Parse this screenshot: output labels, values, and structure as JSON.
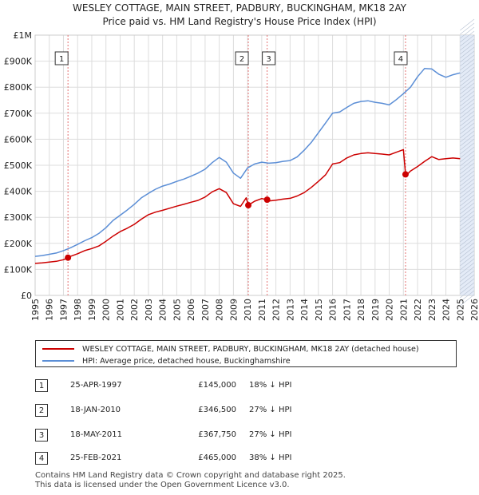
{
  "title_line1": "WESLEY COTTAGE, MAIN STREET, PADBURY, BUCKINGHAM, MK18 2AY",
  "title_line2": "Price paid vs. HM Land Registry's House Price Index (HPI)",
  "colors": {
    "property": "#cc0000",
    "hpi": "#5b8ed6",
    "marker_line": "#e57373",
    "shade": "#dde6f5",
    "grid": "#dddddd"
  },
  "chart_data": {
    "type": "line",
    "xlim": [
      1995,
      2026
    ],
    "ylim": [
      0,
      1000000
    ],
    "x_ticks": [
      "1995",
      "1996",
      "1997",
      "1998",
      "1999",
      "2000",
      "2001",
      "2002",
      "2003",
      "2004",
      "2005",
      "2006",
      "2007",
      "2008",
      "2009",
      "2010",
      "2011",
      "2012",
      "2013",
      "2014",
      "2015",
      "2016",
      "2017",
      "2018",
      "2019",
      "2020",
      "2021",
      "2022",
      "2023",
      "2024",
      "2025",
      "2026"
    ],
    "y_ticks": [
      {
        "value": 0,
        "label": "£0"
      },
      {
        "value": 100000,
        "label": "£100K"
      },
      {
        "value": 200000,
        "label": "£200K"
      },
      {
        "value": 300000,
        "label": "£300K"
      },
      {
        "value": 400000,
        "label": "£400K"
      },
      {
        "value": 500000,
        "label": "£500K"
      },
      {
        "value": 600000,
        "label": "£600K"
      },
      {
        "value": 700000,
        "label": "£700K"
      },
      {
        "value": 800000,
        "label": "£800K"
      },
      {
        "value": 900000,
        "label": "£900K"
      },
      {
        "value": 1000000,
        "label": "£1M"
      }
    ],
    "projection_from": 2025.0,
    "series": [
      {
        "name": "WESLEY COTTAGE, MAIN STREET, PADBURY, BUCKINGHAM, MK18 2AY (detached house)",
        "x": [
          1995.0,
          1995.5,
          1996.0,
          1996.5,
          1997.0,
          1997.32,
          1997.5,
          1998.0,
          1998.5,
          1999.0,
          1999.5,
          2000.0,
          2000.5,
          2001.0,
          2001.5,
          2002.0,
          2002.5,
          2003.0,
          2003.5,
          2004.0,
          2004.5,
          2005.0,
          2005.5,
          2006.0,
          2006.5,
          2007.0,
          2007.5,
          2008.0,
          2008.5,
          2009.0,
          2009.5,
          2009.9,
          2010.05,
          2010.5,
          2011.0,
          2011.38,
          2011.5,
          2012.0,
          2012.5,
          2013.0,
          2013.5,
          2014.0,
          2014.5,
          2015.0,
          2015.5,
          2016.0,
          2016.5,
          2017.0,
          2017.5,
          2018.0,
          2018.5,
          2019.0,
          2019.5,
          2020.0,
          2020.5,
          2021.0,
          2021.15,
          2021.3,
          2021.5,
          2022.0,
          2022.5,
          2023.0,
          2023.5,
          2024.0,
          2024.5,
          2025.0
        ],
        "y": [
          123000,
          125000,
          128000,
          131000,
          137000,
          145000,
          150000,
          160000,
          172000,
          180000,
          190000,
          208000,
          228000,
          245000,
          258000,
          273000,
          293000,
          310000,
          320000,
          327000,
          335000,
          343000,
          350000,
          358000,
          365000,
          378000,
          398000,
          410000,
          395000,
          352000,
          342000,
          375000,
          346500,
          362000,
          372000,
          367750,
          363000,
          366000,
          370000,
          373000,
          382000,
          395000,
          415000,
          438000,
          463000,
          505000,
          510000,
          528000,
          540000,
          545000,
          548000,
          545000,
          543000,
          540000,
          550000,
          560000,
          465000,
          467000,
          478000,
          495000,
          515000,
          533000,
          522000,
          525000,
          528000,
          525000
        ]
      },
      {
        "name": "HPI: Average price, detached house, Buckinghamshire",
        "x": [
          1995.0,
          1995.5,
          1996.0,
          1996.5,
          1997.0,
          1997.5,
          1998.0,
          1998.5,
          1999.0,
          1999.5,
          2000.0,
          2000.5,
          2001.0,
          2001.5,
          2002.0,
          2002.5,
          2003.0,
          2003.5,
          2004.0,
          2004.5,
          2005.0,
          2005.5,
          2006.0,
          2006.5,
          2007.0,
          2007.5,
          2008.0,
          2008.5,
          2009.0,
          2009.5,
          2010.0,
          2010.5,
          2011.0,
          2011.5,
          2012.0,
          2012.5,
          2013.0,
          2013.5,
          2014.0,
          2014.5,
          2015.0,
          2015.5,
          2016.0,
          2016.5,
          2017.0,
          2017.5,
          2018.0,
          2018.5,
          2019.0,
          2019.5,
          2020.0,
          2020.5,
          2021.0,
          2021.5,
          2022.0,
          2022.5,
          2023.0,
          2023.5,
          2024.0,
          2024.5,
          2025.0
        ],
        "y": [
          150000,
          153000,
          158000,
          163000,
          172000,
          183000,
          196000,
          210000,
          222000,
          238000,
          260000,
          288000,
          308000,
          328000,
          350000,
          375000,
          392000,
          408000,
          420000,
          428000,
          438000,
          447000,
          458000,
          470000,
          485000,
          510000,
          530000,
          512000,
          470000,
          450000,
          490000,
          505000,
          512000,
          508000,
          510000,
          515000,
          518000,
          532000,
          558000,
          588000,
          625000,
          662000,
          700000,
          705000,
          722000,
          738000,
          745000,
          748000,
          742000,
          738000,
          732000,
          752000,
          775000,
          800000,
          840000,
          872000,
          870000,
          850000,
          838000,
          848000,
          855000
        ]
      }
    ],
    "sales": [
      {
        "num": "1",
        "x": 1997.32,
        "value": 145000
      },
      {
        "num": "2",
        "x": 2010.05,
        "value": 346500
      },
      {
        "num": "3",
        "x": 2011.38,
        "value": 367750
      },
      {
        "num": "4",
        "x": 2021.15,
        "value": 465000
      }
    ]
  },
  "legend": {
    "property": "WESLEY COTTAGE, MAIN STREET, PADBURY, BUCKINGHAM, MK18 2AY (detached house)",
    "hpi": "HPI: Average price, detached house, Buckinghamshire"
  },
  "transactions": [
    {
      "num": "1",
      "date": "25-APR-1997",
      "price": "£145,000",
      "hpi": "18% ↓ HPI"
    },
    {
      "num": "2",
      "date": "18-JAN-2010",
      "price": "£346,500",
      "hpi": "27% ↓ HPI"
    },
    {
      "num": "3",
      "date": "18-MAY-2011",
      "price": "£367,750",
      "hpi": "27% ↓ HPI"
    },
    {
      "num": "4",
      "date": "25-FEB-2021",
      "price": "£465,000",
      "hpi": "38% ↓ HPI"
    }
  ],
  "footer": {
    "line1": "Contains HM Land Registry data © Crown copyright and database right 2025.",
    "line2": "This data is licensed under the Open Government Licence v3.0."
  }
}
